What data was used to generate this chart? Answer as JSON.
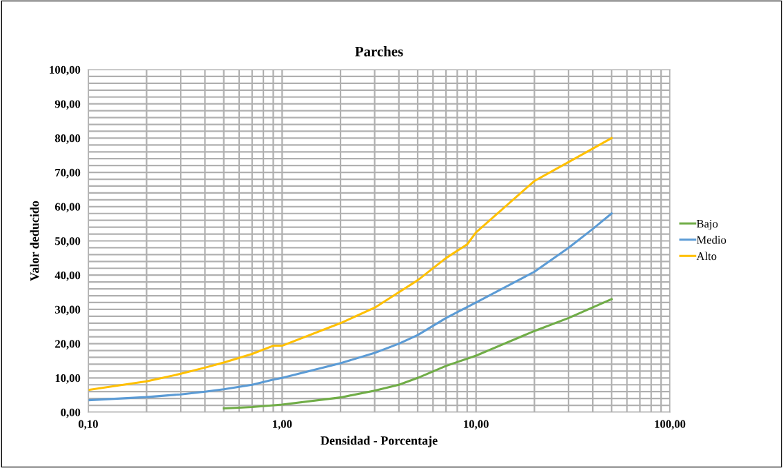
{
  "chart_data": {
    "type": "line",
    "title": "Parches",
    "xlabel": "Densidad - Porcentaje",
    "ylabel": "Valor deducido",
    "log": "x",
    "grid": true,
    "legend": "right",
    "marker": "none",
    "line_style": "solid",
    "xlim": [
      0.1,
      100
    ],
    "ylim": [
      0,
      100
    ],
    "xticks": [
      {
        "value": 0.1,
        "label": "0,10"
      },
      {
        "value": 0.2,
        "label": null
      },
      {
        "value": 0.3,
        "label": null
      },
      {
        "value": 0.4,
        "label": null
      },
      {
        "value": 0.5,
        "label": null
      },
      {
        "value": 0.6,
        "label": null
      },
      {
        "value": 0.7,
        "label": null
      },
      {
        "value": 0.8,
        "label": null
      },
      {
        "value": 0.9,
        "label": null
      },
      {
        "value": 1,
        "label": "1,00"
      },
      {
        "value": 2,
        "label": null
      },
      {
        "value": 3,
        "label": null
      },
      {
        "value": 4,
        "label": null
      },
      {
        "value": 5,
        "label": null
      },
      {
        "value": 6,
        "label": null
      },
      {
        "value": 7,
        "label": null
      },
      {
        "value": 8,
        "label": null
      },
      {
        "value": 9,
        "label": null
      },
      {
        "value": 10,
        "label": "10,00"
      },
      {
        "value": 20,
        "label": null
      },
      {
        "value": 30,
        "label": null
      },
      {
        "value": 40,
        "label": null
      },
      {
        "value": 50,
        "label": null
      },
      {
        "value": 60,
        "label": null
      },
      {
        "value": 70,
        "label": null
      },
      {
        "value": 80,
        "label": null
      },
      {
        "value": 90,
        "label": null
      },
      {
        "value": 100,
        "label": "100,00"
      }
    ],
    "yticks": [
      {
        "value": 0,
        "label": "0,00"
      },
      {
        "value": 2,
        "label": null
      },
      {
        "value": 4,
        "label": null
      },
      {
        "value": 6,
        "label": null
      },
      {
        "value": 8,
        "label": null
      },
      {
        "value": 10,
        "label": "10,00"
      },
      {
        "value": 12,
        "label": null
      },
      {
        "value": 14,
        "label": null
      },
      {
        "value": 16,
        "label": null
      },
      {
        "value": 18,
        "label": null
      },
      {
        "value": 20,
        "label": "20,00"
      },
      {
        "value": 22,
        "label": null
      },
      {
        "value": 24,
        "label": null
      },
      {
        "value": 26,
        "label": null
      },
      {
        "value": 28,
        "label": null
      },
      {
        "value": 30,
        "label": "30,00"
      },
      {
        "value": 32,
        "label": null
      },
      {
        "value": 34,
        "label": null
      },
      {
        "value": 36,
        "label": null
      },
      {
        "value": 38,
        "label": null
      },
      {
        "value": 40,
        "label": "40,00"
      },
      {
        "value": 42,
        "label": null
      },
      {
        "value": 44,
        "label": null
      },
      {
        "value": 46,
        "label": null
      },
      {
        "value": 48,
        "label": null
      },
      {
        "value": 50,
        "label": "50,00"
      },
      {
        "value": 52,
        "label": null
      },
      {
        "value": 54,
        "label": null
      },
      {
        "value": 56,
        "label": null
      },
      {
        "value": 58,
        "label": null
      },
      {
        "value": 60,
        "label": "60,00"
      },
      {
        "value": 62,
        "label": null
      },
      {
        "value": 64,
        "label": null
      },
      {
        "value": 66,
        "label": null
      },
      {
        "value": 68,
        "label": null
      },
      {
        "value": 70,
        "label": "70,00"
      },
      {
        "value": 72,
        "label": null
      },
      {
        "value": 74,
        "label": null
      },
      {
        "value": 76,
        "label": null
      },
      {
        "value": 78,
        "label": null
      },
      {
        "value": 80,
        "label": "80,00"
      },
      {
        "value": 82,
        "label": null
      },
      {
        "value": 84,
        "label": null
      },
      {
        "value": 86,
        "label": null
      },
      {
        "value": 88,
        "label": null
      },
      {
        "value": 90,
        "label": "90,00"
      },
      {
        "value": 92,
        "label": null
      },
      {
        "value": 94,
        "label": null
      },
      {
        "value": 96,
        "label": null
      },
      {
        "value": 98,
        "label": null
      },
      {
        "value": 100,
        "label": "100,00"
      }
    ],
    "series": [
      {
        "name": "Bajo",
        "color": "#70ad47",
        "x": [
          0.5,
          0.7,
          1,
          2,
          3,
          4,
          5,
          7,
          10,
          20,
          30,
          50
        ],
        "values": [
          1.1,
          1.5,
          2.2,
          4.3,
          6.3,
          8,
          10,
          13.5,
          16.5,
          23.7,
          27.5,
          33
        ]
      },
      {
        "name": "Medio",
        "color": "#5b9bd5",
        "x": [
          0.1,
          0.2,
          0.3,
          0.4,
          0.5,
          0.7,
          0.9,
          1,
          2,
          3,
          4,
          5,
          7,
          10,
          20,
          30,
          40,
          50
        ],
        "values": [
          3.5,
          4.4,
          5.2,
          6,
          6.7,
          8,
          9.5,
          10,
          14.3,
          17.3,
          20,
          22.5,
          27.5,
          32,
          41,
          48,
          53.5,
          58
        ]
      },
      {
        "name": "Alto",
        "color": "#ffc000",
        "x": [
          0.1,
          0.2,
          0.3,
          0.4,
          0.5,
          0.7,
          0.9,
          1,
          2,
          3,
          4,
          5,
          7,
          9,
          10,
          20,
          30,
          50
        ],
        "values": [
          6.5,
          9,
          11.2,
          13,
          14.5,
          17,
          19.4,
          19.4,
          26,
          30.5,
          35,
          38.5,
          45,
          49,
          52.5,
          67.5,
          73,
          80
        ]
      }
    ]
  }
}
